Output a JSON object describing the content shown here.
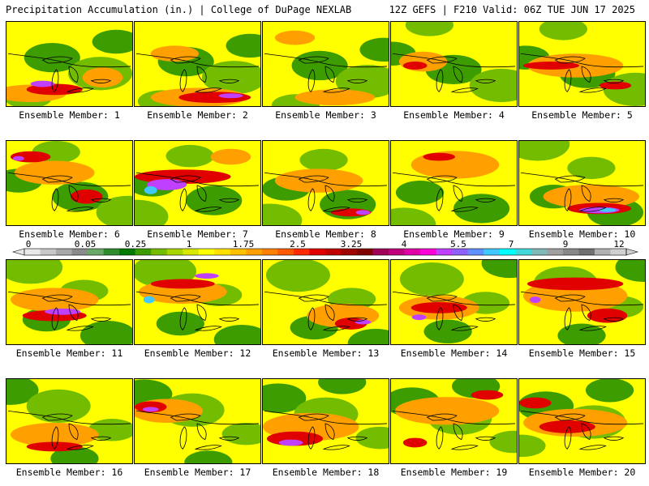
{
  "header": {
    "left_title": "Precipitation Accumulation (in.) | College of DuPage NEXLAB",
    "right_title": "12Z GEFS | F210 Valid: 06Z TUE JUN 17 2025"
  },
  "panel_label_prefix": "Ensemble Member: ",
  "members": [
    1,
    2,
    3,
    4,
    5,
    6,
    7,
    8,
    9,
    10,
    11,
    12,
    13,
    14,
    15,
    16,
    17,
    18,
    19,
    20
  ],
  "panel_labels": [
    "Ensemble Member: 1",
    "Ensemble Member: 2",
    "Ensemble Member: 3",
    "Ensemble Member: 4",
    "Ensemble Member: 5",
    "Ensemble Member: 6",
    "Ensemble Member: 7",
    "Ensemble Member: 8",
    "Ensemble Member: 9",
    "Ensemble Member: 10",
    "Ensemble Member: 11",
    "Ensemble Member: 12",
    "Ensemble Member: 13",
    "Ensemble Member: 14",
    "Ensemble Member: 15",
    "Ensemble Member: 16",
    "Ensemble Member: 17",
    "Ensemble Member: 18",
    "Ensemble Member: 19",
    "Ensemble Member: 20"
  ],
  "legend": {
    "unit": "in.",
    "tick_labels": [
      "0",
      "0.05",
      "0.25",
      "1",
      "1.75",
      "2.5",
      "3.25",
      "4",
      "5.5",
      "7",
      "9",
      "12"
    ],
    "colors": [
      "#e8e8e8",
      "#c8c8c8",
      "#a8a8a8",
      "#8a8a8a",
      "#6aa86a",
      "#2e8b2e",
      "#007a00",
      "#3c9c00",
      "#74bc00",
      "#a8d400",
      "#d8e800",
      "#ffff00",
      "#ffe000",
      "#ffc000",
      "#ffa000",
      "#ff8000",
      "#ff5a00",
      "#ff2a00",
      "#e00000",
      "#c00000",
      "#a00000",
      "#800000",
      "#a00058",
      "#c0007a",
      "#e000a8",
      "#ff00d8",
      "#c040ff",
      "#9060ff",
      "#6090ff",
      "#40c8ff",
      "#00ffff",
      "#40d8d8",
      "#80b8b8",
      "#a0a0a0",
      "#888888",
      "#707070",
      "#b0b0b0",
      "#d0d0d0"
    ]
  },
  "map_colors": {
    "dry_green": "#3c9c00",
    "light_green": "#74bc00",
    "yellow": "#ffff00",
    "orange": "#ffa000",
    "red": "#e00000",
    "darkred": "#a00000",
    "magenta": "#c0007a",
    "purple": "#c040ff",
    "cyan": "#40c8ff"
  },
  "notable_features": {
    "cyan_peak_members": [
      7,
      10,
      12
    ],
    "purple_bands_members": [
      1,
      2,
      11,
      12,
      13,
      14,
      15,
      18
    ]
  }
}
